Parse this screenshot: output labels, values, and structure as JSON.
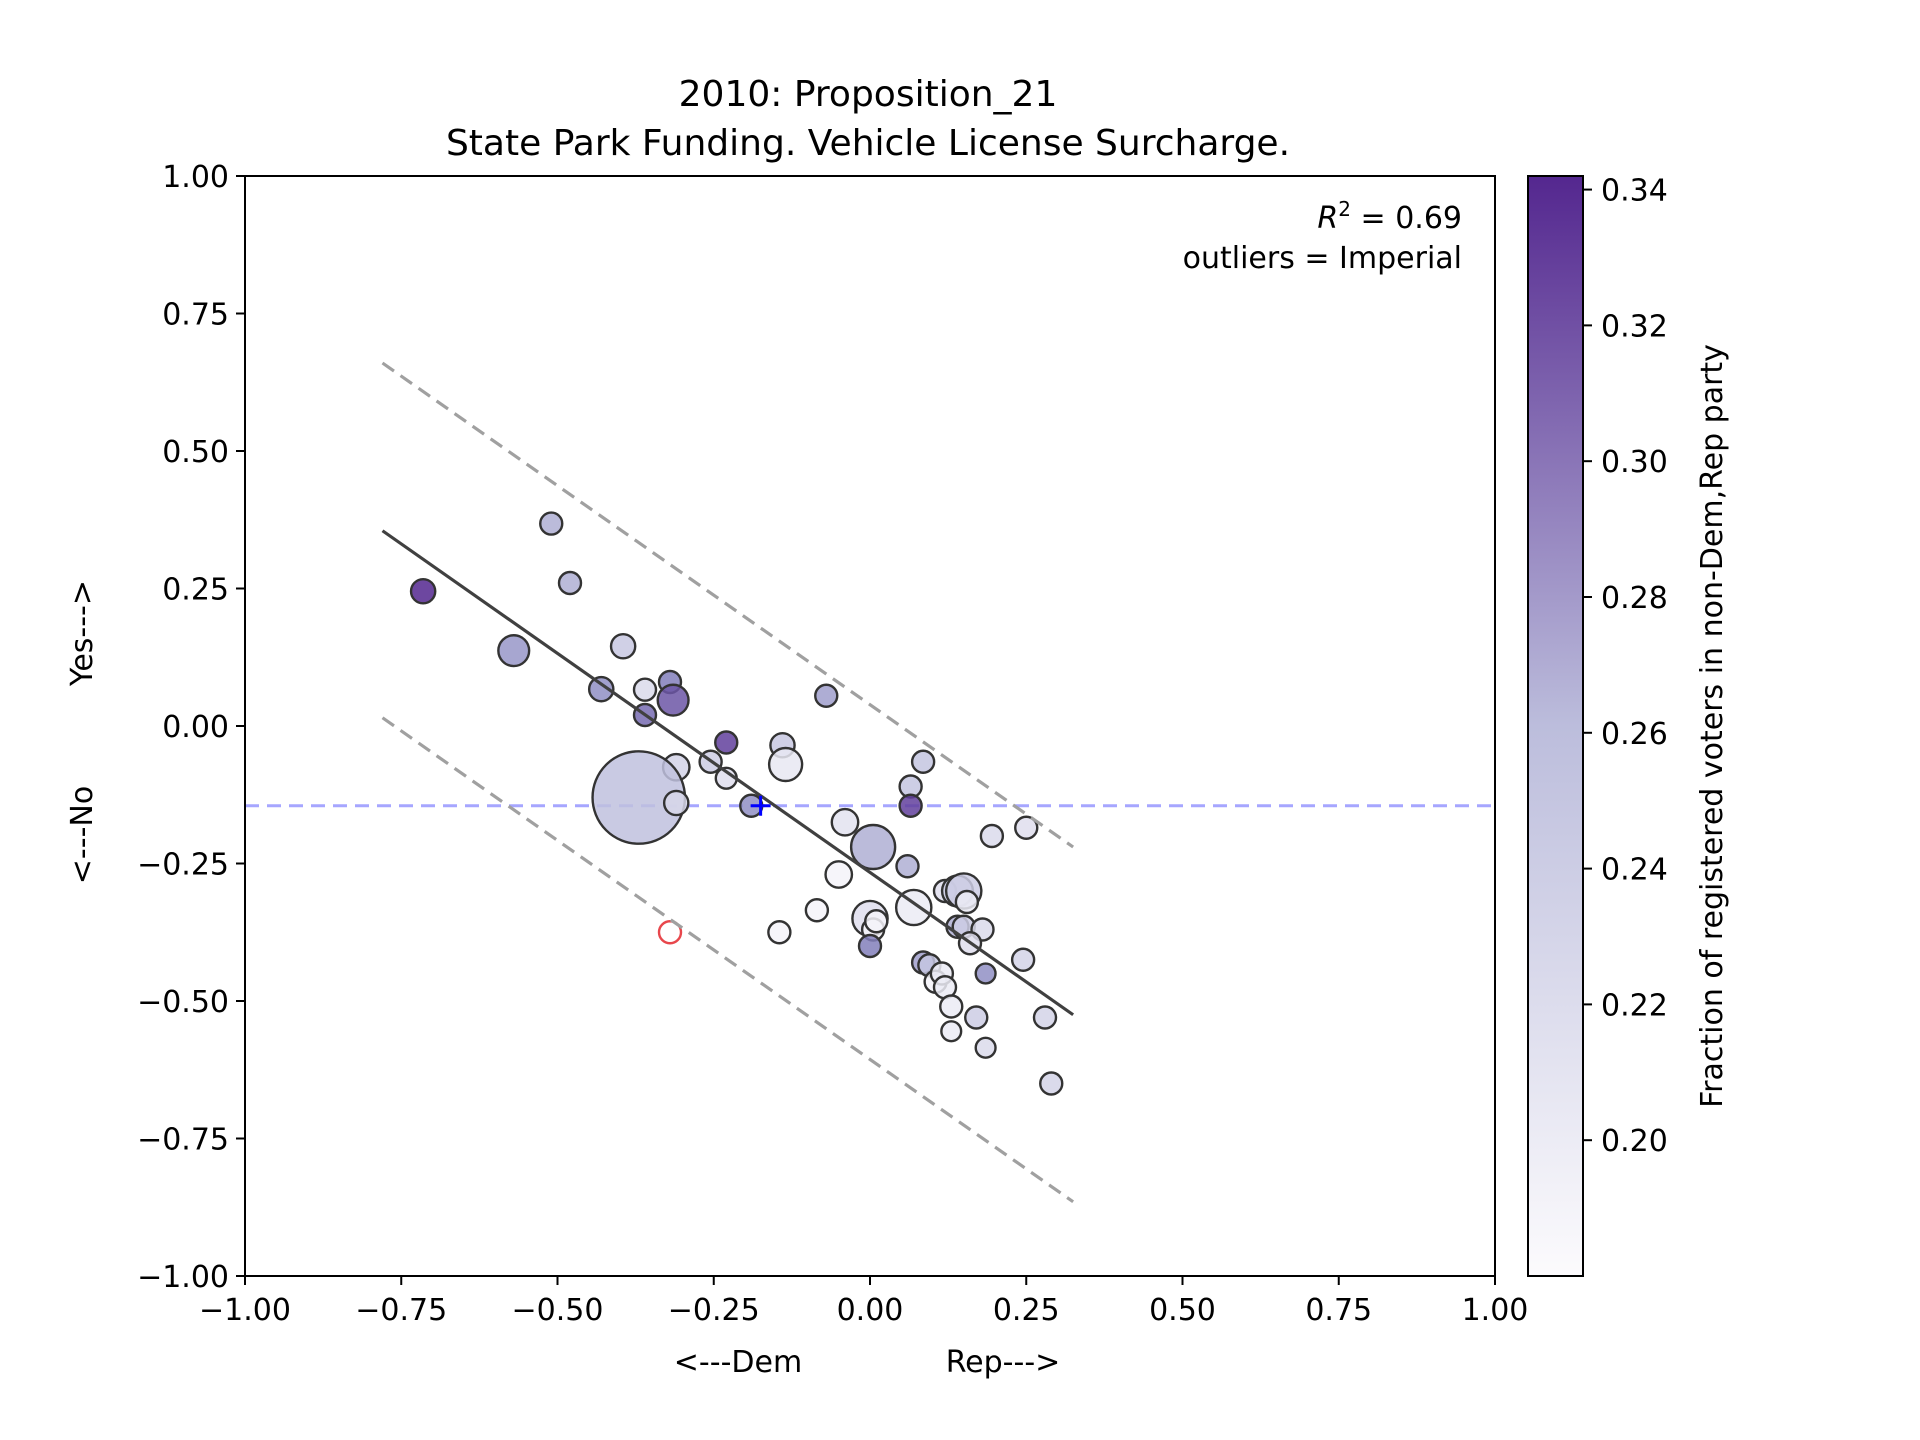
{
  "chart_data": {
    "type": "scatter",
    "title": "2010: Proposition_21",
    "subtitle": "State Park Funding. Vehicle License Surcharge.",
    "xlabel_left": "<---Dem",
    "xlabel_right": "Rep--->",
    "ylabel_bottom": "<---No",
    "ylabel_top": "Yes--->",
    "xlim": [
      -1.0,
      1.0
    ],
    "ylim": [
      -1.0,
      1.0
    ],
    "xticks": [
      -1.0,
      -0.75,
      -0.5,
      -0.25,
      0.0,
      0.25,
      0.5,
      0.75,
      1.0
    ],
    "yticks": [
      -1.0,
      -0.75,
      -0.5,
      -0.25,
      0.0,
      0.25,
      0.5,
      0.75,
      1.0
    ],
    "xtick_labels": [
      "−1.00",
      "−0.75",
      "−0.50",
      "−0.25",
      "0.00",
      "0.25",
      "0.50",
      "0.75",
      "1.00"
    ],
    "ytick_labels": [
      "−1.00",
      "−0.75",
      "−0.50",
      "−0.25",
      "0.00",
      "0.25",
      "0.50",
      "0.75",
      "1.00"
    ],
    "annotation_r2_symbol": "R",
    "annotation_r2_exp": "2",
    "annotation_r2_value": " = 0.69",
    "annotation_outliers": "outliers = Imperial",
    "colorbar": {
      "label": "Fraction of registered voters in non-Dem,Rep party",
      "range": [
        0.18,
        0.342
      ],
      "ticks": [
        0.2,
        0.22,
        0.24,
        0.26,
        0.28,
        0.3,
        0.32,
        0.34
      ],
      "tick_labels": [
        "0.20",
        "0.22",
        "0.24",
        "0.26",
        "0.28",
        "0.30",
        "0.32",
        "0.34"
      ],
      "color_low": "#fcfbfd",
      "color_high": "#54278f"
    },
    "reference_line": {
      "y": -0.145,
      "color": "#0000ff"
    },
    "reference_marker": {
      "x": -0.175,
      "y": -0.145,
      "color": "#0000ff"
    },
    "fit_line": {
      "x": [
        -0.78,
        0.325
      ],
      "y": [
        0.355,
        -0.525
      ],
      "color": "#404040"
    },
    "band_upper": {
      "x": [
        -0.78,
        0.325
      ],
      "y": [
        0.66,
        -0.22
      ],
      "color": "#a0a0a0"
    },
    "band_lower": {
      "x": [
        -0.78,
        0.325
      ],
      "y": [
        0.015,
        -0.865
      ],
      "color": "#a0a0a0"
    },
    "outlier_points": [
      {
        "x": -0.32,
        "y": -0.375,
        "color": "#e8474c"
      }
    ],
    "points": [
      {
        "x": -0.715,
        "y": 0.245,
        "c": 0.342,
        "s": 1.1
      },
      {
        "x": -0.51,
        "y": 0.368,
        "c": 0.27,
        "s": 1.0
      },
      {
        "x": -0.48,
        "y": 0.26,
        "c": 0.27,
        "s": 1.0
      },
      {
        "x": -0.57,
        "y": 0.137,
        "c": 0.285,
        "s": 1.4
      },
      {
        "x": -0.395,
        "y": 0.145,
        "c": 0.245,
        "s": 1.1
      },
      {
        "x": -0.43,
        "y": 0.067,
        "c": 0.29,
        "s": 1.1
      },
      {
        "x": -0.36,
        "y": 0.066,
        "c": 0.22,
        "s": 1.0
      },
      {
        "x": -0.32,
        "y": 0.08,
        "c": 0.3,
        "s": 1.0
      },
      {
        "x": -0.315,
        "y": 0.047,
        "c": 0.32,
        "s": 1.4
      },
      {
        "x": -0.36,
        "y": 0.02,
        "c": 0.31,
        "s": 1.0
      },
      {
        "x": -0.23,
        "y": -0.03,
        "c": 0.33,
        "s": 1.0
      },
      {
        "x": -0.255,
        "y": -0.065,
        "c": 0.24,
        "s": 1.0
      },
      {
        "x": -0.31,
        "y": -0.075,
        "c": 0.23,
        "s": 1.2
      },
      {
        "x": -0.23,
        "y": -0.095,
        "c": 0.215,
        "s": 0.95
      },
      {
        "x": -0.37,
        "y": -0.13,
        "c": 0.255,
        "s": 4.2
      },
      {
        "x": -0.31,
        "y": -0.14,
        "c": 0.225,
        "s": 1.1
      },
      {
        "x": -0.14,
        "y": -0.035,
        "c": 0.245,
        "s": 1.1
      },
      {
        "x": -0.135,
        "y": -0.07,
        "c": 0.205,
        "s": 1.5
      },
      {
        "x": -0.07,
        "y": 0.055,
        "c": 0.28,
        "s": 1.0
      },
      {
        "x": -0.19,
        "y": -0.145,
        "c": 0.29,
        "s": 1.0
      },
      {
        "x": -0.04,
        "y": -0.175,
        "c": 0.21,
        "s": 1.2
      },
      {
        "x": 0.005,
        "y": -0.22,
        "c": 0.27,
        "s": 2.0
      },
      {
        "x": -0.05,
        "y": -0.27,
        "c": 0.19,
        "s": 1.2
      },
      {
        "x": -0.085,
        "y": -0.335,
        "c": 0.19,
        "s": 1.0
      },
      {
        "x": -0.145,
        "y": -0.375,
        "c": 0.19,
        "s": 1.0
      },
      {
        "x": 0.0,
        "y": -0.35,
        "c": 0.215,
        "s": 1.6
      },
      {
        "x": 0.005,
        "y": -0.37,
        "c": 0.19,
        "s": 1.0
      },
      {
        "x": 0.01,
        "y": -0.355,
        "c": 0.19,
        "s": 1.0
      },
      {
        "x": 0.0,
        "y": -0.4,
        "c": 0.3,
        "s": 1.0
      },
      {
        "x": 0.065,
        "y": -0.11,
        "c": 0.25,
        "s": 1.0
      },
      {
        "x": 0.085,
        "y": -0.065,
        "c": 0.25,
        "s": 1.0
      },
      {
        "x": 0.065,
        "y": -0.145,
        "c": 0.33,
        "s": 1.0
      },
      {
        "x": 0.06,
        "y": -0.255,
        "c": 0.27,
        "s": 1.0
      },
      {
        "x": 0.07,
        "y": -0.33,
        "c": 0.2,
        "s": 1.6
      },
      {
        "x": 0.12,
        "y": -0.3,
        "c": 0.215,
        "s": 1.0
      },
      {
        "x": 0.14,
        "y": -0.3,
        "c": 0.24,
        "s": 1.4
      },
      {
        "x": 0.15,
        "y": -0.3,
        "c": 0.24,
        "s": 1.6
      },
      {
        "x": 0.155,
        "y": -0.32,
        "c": 0.2,
        "s": 1.0
      },
      {
        "x": 0.14,
        "y": -0.365,
        "c": 0.27,
        "s": 1.0
      },
      {
        "x": 0.15,
        "y": -0.365,
        "c": 0.24,
        "s": 1.0
      },
      {
        "x": 0.18,
        "y": -0.37,
        "c": 0.22,
        "s": 1.0
      },
      {
        "x": 0.16,
        "y": -0.395,
        "c": 0.215,
        "s": 1.0
      },
      {
        "x": 0.085,
        "y": -0.43,
        "c": 0.28,
        "s": 1.0
      },
      {
        "x": 0.095,
        "y": -0.435,
        "c": 0.25,
        "s": 1.0
      },
      {
        "x": 0.105,
        "y": -0.465,
        "c": 0.19,
        "s": 1.0
      },
      {
        "x": 0.115,
        "y": -0.45,
        "c": 0.2,
        "s": 1.0
      },
      {
        "x": 0.12,
        "y": -0.475,
        "c": 0.2,
        "s": 1.0
      },
      {
        "x": 0.185,
        "y": -0.45,
        "c": 0.29,
        "s": 0.9
      },
      {
        "x": 0.13,
        "y": -0.51,
        "c": 0.2,
        "s": 1.0
      },
      {
        "x": 0.17,
        "y": -0.53,
        "c": 0.24,
        "s": 1.0
      },
      {
        "x": 0.13,
        "y": -0.555,
        "c": 0.2,
        "s": 0.9
      },
      {
        "x": 0.185,
        "y": -0.585,
        "c": 0.22,
        "s": 0.9
      },
      {
        "x": 0.195,
        "y": -0.2,
        "c": 0.22,
        "s": 1.0
      },
      {
        "x": 0.25,
        "y": -0.185,
        "c": 0.215,
        "s": 1.0
      },
      {
        "x": 0.245,
        "y": -0.425,
        "c": 0.23,
        "s": 1.0
      },
      {
        "x": 0.28,
        "y": -0.53,
        "c": 0.23,
        "s": 1.0
      },
      {
        "x": 0.29,
        "y": -0.65,
        "c": 0.23,
        "s": 1.0
      }
    ]
  }
}
